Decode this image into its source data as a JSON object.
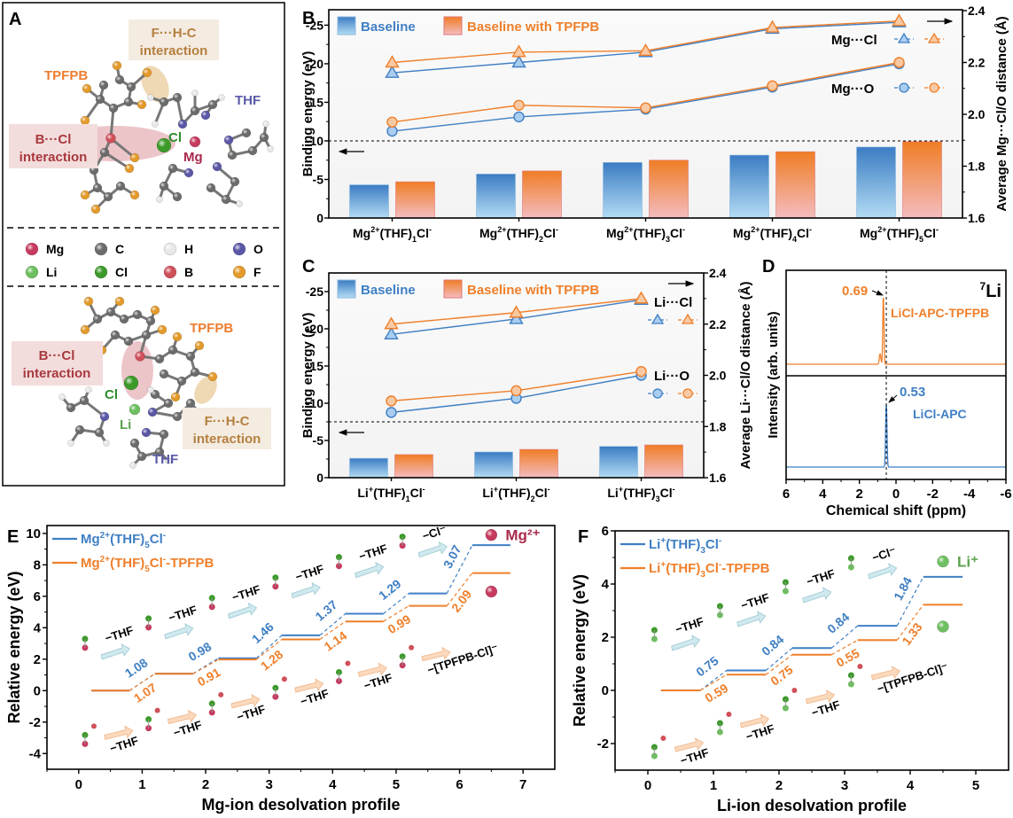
{
  "colors": {
    "blue": "#3f7fc4",
    "blue_light": "#aed8f2",
    "orange": "#ef7f2a",
    "orange_light": "#f4b9bd",
    "mg_red": "#a8294a",
    "li_green": "#5aa14a",
    "thf_purple": "#5a5aa8",
    "bcl_red": "#a8393f",
    "fhc_brown": "#b5803f",
    "bcl_box": "#f3dcdc",
    "fhc_box": "#f4ebe1"
  },
  "panels": {
    "A": {
      "label": "A",
      "top": {
        "tpfpb": "TPFPB",
        "thf": "THF",
        "cl": "Cl",
        "mg": "Mg",
        "bcl_line1": "B···Cl",
        "bcl_line2": "interaction",
        "fhc_line1": "F···H-C",
        "fhc_line2": "interaction"
      },
      "legend": [
        {
          "symbol": "Mg",
          "color": "#c63a5e"
        },
        {
          "symbol": "C",
          "color": "#6b6b6b"
        },
        {
          "symbol": "H",
          "color": "#e8e8e8"
        },
        {
          "symbol": "O",
          "color": "#5b57a6"
        },
        {
          "symbol": "Li",
          "color": "#6dbf5f"
        },
        {
          "symbol": "Cl",
          "color": "#3c9a2a"
        },
        {
          "symbol": "B",
          "color": "#d0505a"
        },
        {
          "symbol": "F",
          "color": "#e39a2a"
        }
      ],
      "bottom": {
        "tpfpb": "TPFPB",
        "thf": "THF",
        "cl": "Cl",
        "li": "Li",
        "bcl_line1": "B···Cl",
        "bcl_line2": "interaction",
        "fhc_line1": "F···H-C",
        "fhc_line2": "interaction"
      }
    },
    "D": {
      "label": "D",
      "nucleus_sup": "7",
      "nucleus": "Li"
    }
  },
  "chart_data": [
    {
      "panel": "B",
      "type": "bar+line",
      "title": "",
      "categories": [
        {
          "ion": "Mg",
          "charge": "2+",
          "n": "1",
          "tail": "Cl",
          "tail_sup": "-"
        },
        {
          "ion": "Mg",
          "charge": "2+",
          "n": "2",
          "tail": "Cl",
          "tail_sup": "-"
        },
        {
          "ion": "Mg",
          "charge": "2+",
          "n": "3",
          "tail": "Cl",
          "tail_sup": "-"
        },
        {
          "ion": "Mg",
          "charge": "2+",
          "n": "4",
          "tail": "Cl",
          "tail_sup": "-"
        },
        {
          "ion": "Mg",
          "charge": "2+",
          "n": "5",
          "tail": "Cl",
          "tail_sup": "-"
        }
      ],
      "ylabel": "Binding energy (eV)",
      "y2label": "Average Mg···Cl/O distance (Å)",
      "ylim": [
        0,
        -27
      ],
      "yticks": [
        "0",
        "-5",
        "-10",
        "-15",
        "-20",
        "-25"
      ],
      "y2lim": [
        1.6,
        2.4
      ],
      "y2ticks": [
        "1.6",
        "1.8",
        "2.0",
        "2.2",
        "2.4"
      ],
      "divider": -10,
      "legend": [
        "Baseline",
        "Baseline with TPFPB"
      ],
      "bars": [
        {
          "name": "Baseline",
          "values": [
            -4.3,
            -5.7,
            -7.2,
            -8.15,
            -9.2
          ]
        },
        {
          "name": "Baseline with TPFPB",
          "values": [
            -4.7,
            -6.1,
            -7.5,
            -8.6,
            -9.9
          ]
        }
      ],
      "lines": [
        {
          "name": "Mg···Cl Baseline",
          "marker": "triangle",
          "color": "blue",
          "values": [
            2.16,
            2.2,
            2.24,
            2.33,
            2.355
          ]
        },
        {
          "name": "Mg···Cl TPFPB",
          "marker": "triangle",
          "color": "orange",
          "values": [
            2.2,
            2.24,
            2.245,
            2.335,
            2.36
          ]
        },
        {
          "name": "Mg···O Baseline",
          "marker": "circle",
          "color": "blue",
          "values": [
            1.935,
            1.99,
            2.02,
            2.105,
            2.195
          ]
        },
        {
          "name": "Mg···O TPFPB",
          "marker": "circle",
          "color": "orange",
          "values": [
            1.97,
            2.035,
            2.025,
            2.11,
            2.2
          ]
        }
      ],
      "line_labels": {
        "cl": "Mg···Cl",
        "o": "Mg···O"
      }
    },
    {
      "panel": "C",
      "type": "bar+line",
      "title": "",
      "categories": [
        {
          "ion": "Li",
          "charge": "+",
          "n": "1",
          "tail": "Cl",
          "tail_sup": "-"
        },
        {
          "ion": "Li",
          "charge": "+",
          "n": "2",
          "tail": "Cl",
          "tail_sup": "-"
        },
        {
          "ion": "Li",
          "charge": "+",
          "n": "3",
          "tail": "Cl",
          "tail_sup": "-"
        }
      ],
      "ylabel": "Binding energy (eV)",
      "y2label": "Average Li···Cl/O distance (Å)",
      "ylim": [
        0,
        -27.5
      ],
      "yticks": [
        "0",
        "-5",
        "-10",
        "-15",
        "-20",
        "-25"
      ],
      "y2lim": [
        1.6,
        2.4
      ],
      "y2ticks": [
        "1.6",
        "1.8",
        "2.0",
        "2.2",
        "2.4"
      ],
      "divider": -7.5,
      "legend": [
        "Baseline",
        "Baseline with TPFPB"
      ],
      "bars": [
        {
          "name": "Baseline",
          "values": [
            -2.6,
            -3.45,
            -4.2
          ]
        },
        {
          "name": "Baseline with TPFPB",
          "values": [
            -3.1,
            -3.8,
            -4.4
          ]
        }
      ],
      "lines": [
        {
          "name": "Li···Cl Baseline",
          "marker": "triangle",
          "color": "blue",
          "values": [
            2.16,
            2.22,
            2.295
          ]
        },
        {
          "name": "Li···Cl TPFPB",
          "marker": "triangle",
          "color": "orange",
          "values": [
            2.2,
            2.245,
            2.3
          ]
        },
        {
          "name": "Li···O Baseline",
          "marker": "circle",
          "color": "blue",
          "values": [
            1.855,
            1.91,
            2.0
          ]
        },
        {
          "name": "Li···O TPFPB",
          "marker": "circle",
          "color": "orange",
          "values": [
            1.9,
            1.94,
            2.015
          ]
        }
      ],
      "line_labels": {
        "cl": "Li···Cl",
        "o": "Li···O"
      }
    },
    {
      "panel": "D",
      "type": "line",
      "title": "7Li",
      "xlabel": "Chemical shift (ppm)",
      "ylabel": "Intensity (arb. units)",
      "xlim": [
        6,
        -6
      ],
      "xticks": [
        "6",
        "4",
        "2",
        "0",
        "-2",
        "-4",
        "-6"
      ],
      "reference_line": 0.53,
      "series": [
        {
          "name": "LiCl-APC-TPFPB",
          "peak": 0.69,
          "peak_label": "0.69",
          "color": "orange"
        },
        {
          "name": "LiCl-APC",
          "peak": 0.53,
          "peak_label": "0.53",
          "color": "blue"
        }
      ]
    },
    {
      "panel": "E",
      "type": "line",
      "title": "",
      "xlabel": "Mg-ion desolvation profile",
      "ylabel": "Relative energy (eV)",
      "xlim": [
        -0.5,
        7.5
      ],
      "ylim": [
        -5,
        10.5
      ],
      "xticks": [
        "0",
        "1",
        "2",
        "3",
        "4",
        "5",
        "6",
        "7"
      ],
      "yticks": [
        "-4",
        "-2",
        "0",
        "2",
        "4",
        "6",
        "8",
        "10"
      ],
      "legend": [
        {
          "name": "Mg",
          "sup": "2+",
          "mid": "(THF)",
          "sub": "5",
          "tail": "Cl",
          "tail_sup": "-",
          "suffix": "",
          "color": "blue"
        },
        {
          "name": "Mg",
          "sup": "2+",
          "mid": "(THF)",
          "sub": "5",
          "tail": "Cl",
          "tail_sup": "-",
          "suffix": "-TPFPB",
          "color": "orange"
        }
      ],
      "series": [
        {
          "name": "Mg2+(THF)5Cl-",
          "color": "blue",
          "levels": [
            0,
            1.08,
            2.06,
            3.52,
            4.89,
            6.18,
            9.25
          ],
          "steps": [
            "1.08",
            "0.98",
            "1.46",
            "1.37",
            "1.29",
            "3.07"
          ]
        },
        {
          "name": "Mg2+(THF)5Cl--TPFPB",
          "color": "orange",
          "levels": [
            0,
            1.07,
            1.98,
            3.26,
            4.4,
            5.39,
            7.48
          ],
          "steps": [
            "1.07",
            "0.91",
            "1.28",
            "1.14",
            "0.99",
            "2.09"
          ]
        }
      ],
      "step_arrows": {
        "top": [
          "−THF",
          "−THF",
          "−THF",
          "−THF",
          "−THF",
          "−Cl⁻"
        ],
        "bottom": [
          "−THF",
          "−THF",
          "−THF",
          "−THF",
          "−THF",
          "−[TPFPB-Cl]⁻"
        ]
      },
      "end_label": "Mg²⁺"
    },
    {
      "panel": "F",
      "type": "line",
      "title": "",
      "xlabel": "Li-ion desolvation profile",
      "ylabel": "Relative energy (eV)",
      "xlim": [
        -0.5,
        5.5
      ],
      "ylim": [
        -3,
        6
      ],
      "xticks": [
        "0",
        "1",
        "2",
        "3",
        "4",
        "5"
      ],
      "yticks": [
        "-2",
        "0",
        "2",
        "4",
        "6"
      ],
      "legend": [
        {
          "name": "Li",
          "sup": "+",
          "mid": "(THF)",
          "sub": "3",
          "tail": "Cl",
          "tail_sup": "-",
          "suffix": "",
          "color": "blue"
        },
        {
          "name": "Li",
          "sup": "+",
          "mid": "(THF)",
          "sub": "3",
          "tail": "Cl",
          "tail_sup": "-",
          "suffix": "-TPFPB",
          "color": "orange"
        }
      ],
      "series": [
        {
          "name": "Li+(THF)3Cl-",
          "color": "blue",
          "levels": [
            0,
            0.75,
            1.59,
            2.43,
            4.27
          ],
          "steps": [
            "0.75",
            "0.84",
            "0.84",
            "1.84"
          ]
        },
        {
          "name": "Li+(THF)3Cl--TPFPB",
          "color": "orange",
          "levels": [
            0,
            0.59,
            1.34,
            1.89,
            3.22
          ],
          "steps": [
            "0.59",
            "0.75",
            "0.55",
            "1.33"
          ]
        }
      ],
      "step_arrows": {
        "top": [
          "−THF",
          "−THF",
          "−THF",
          "−Cl⁻"
        ],
        "bottom": [
          "−THF",
          "−THF",
          "−THF",
          "−[TPFPB-Cl]⁻"
        ]
      },
      "end_label": "Li⁺"
    }
  ]
}
